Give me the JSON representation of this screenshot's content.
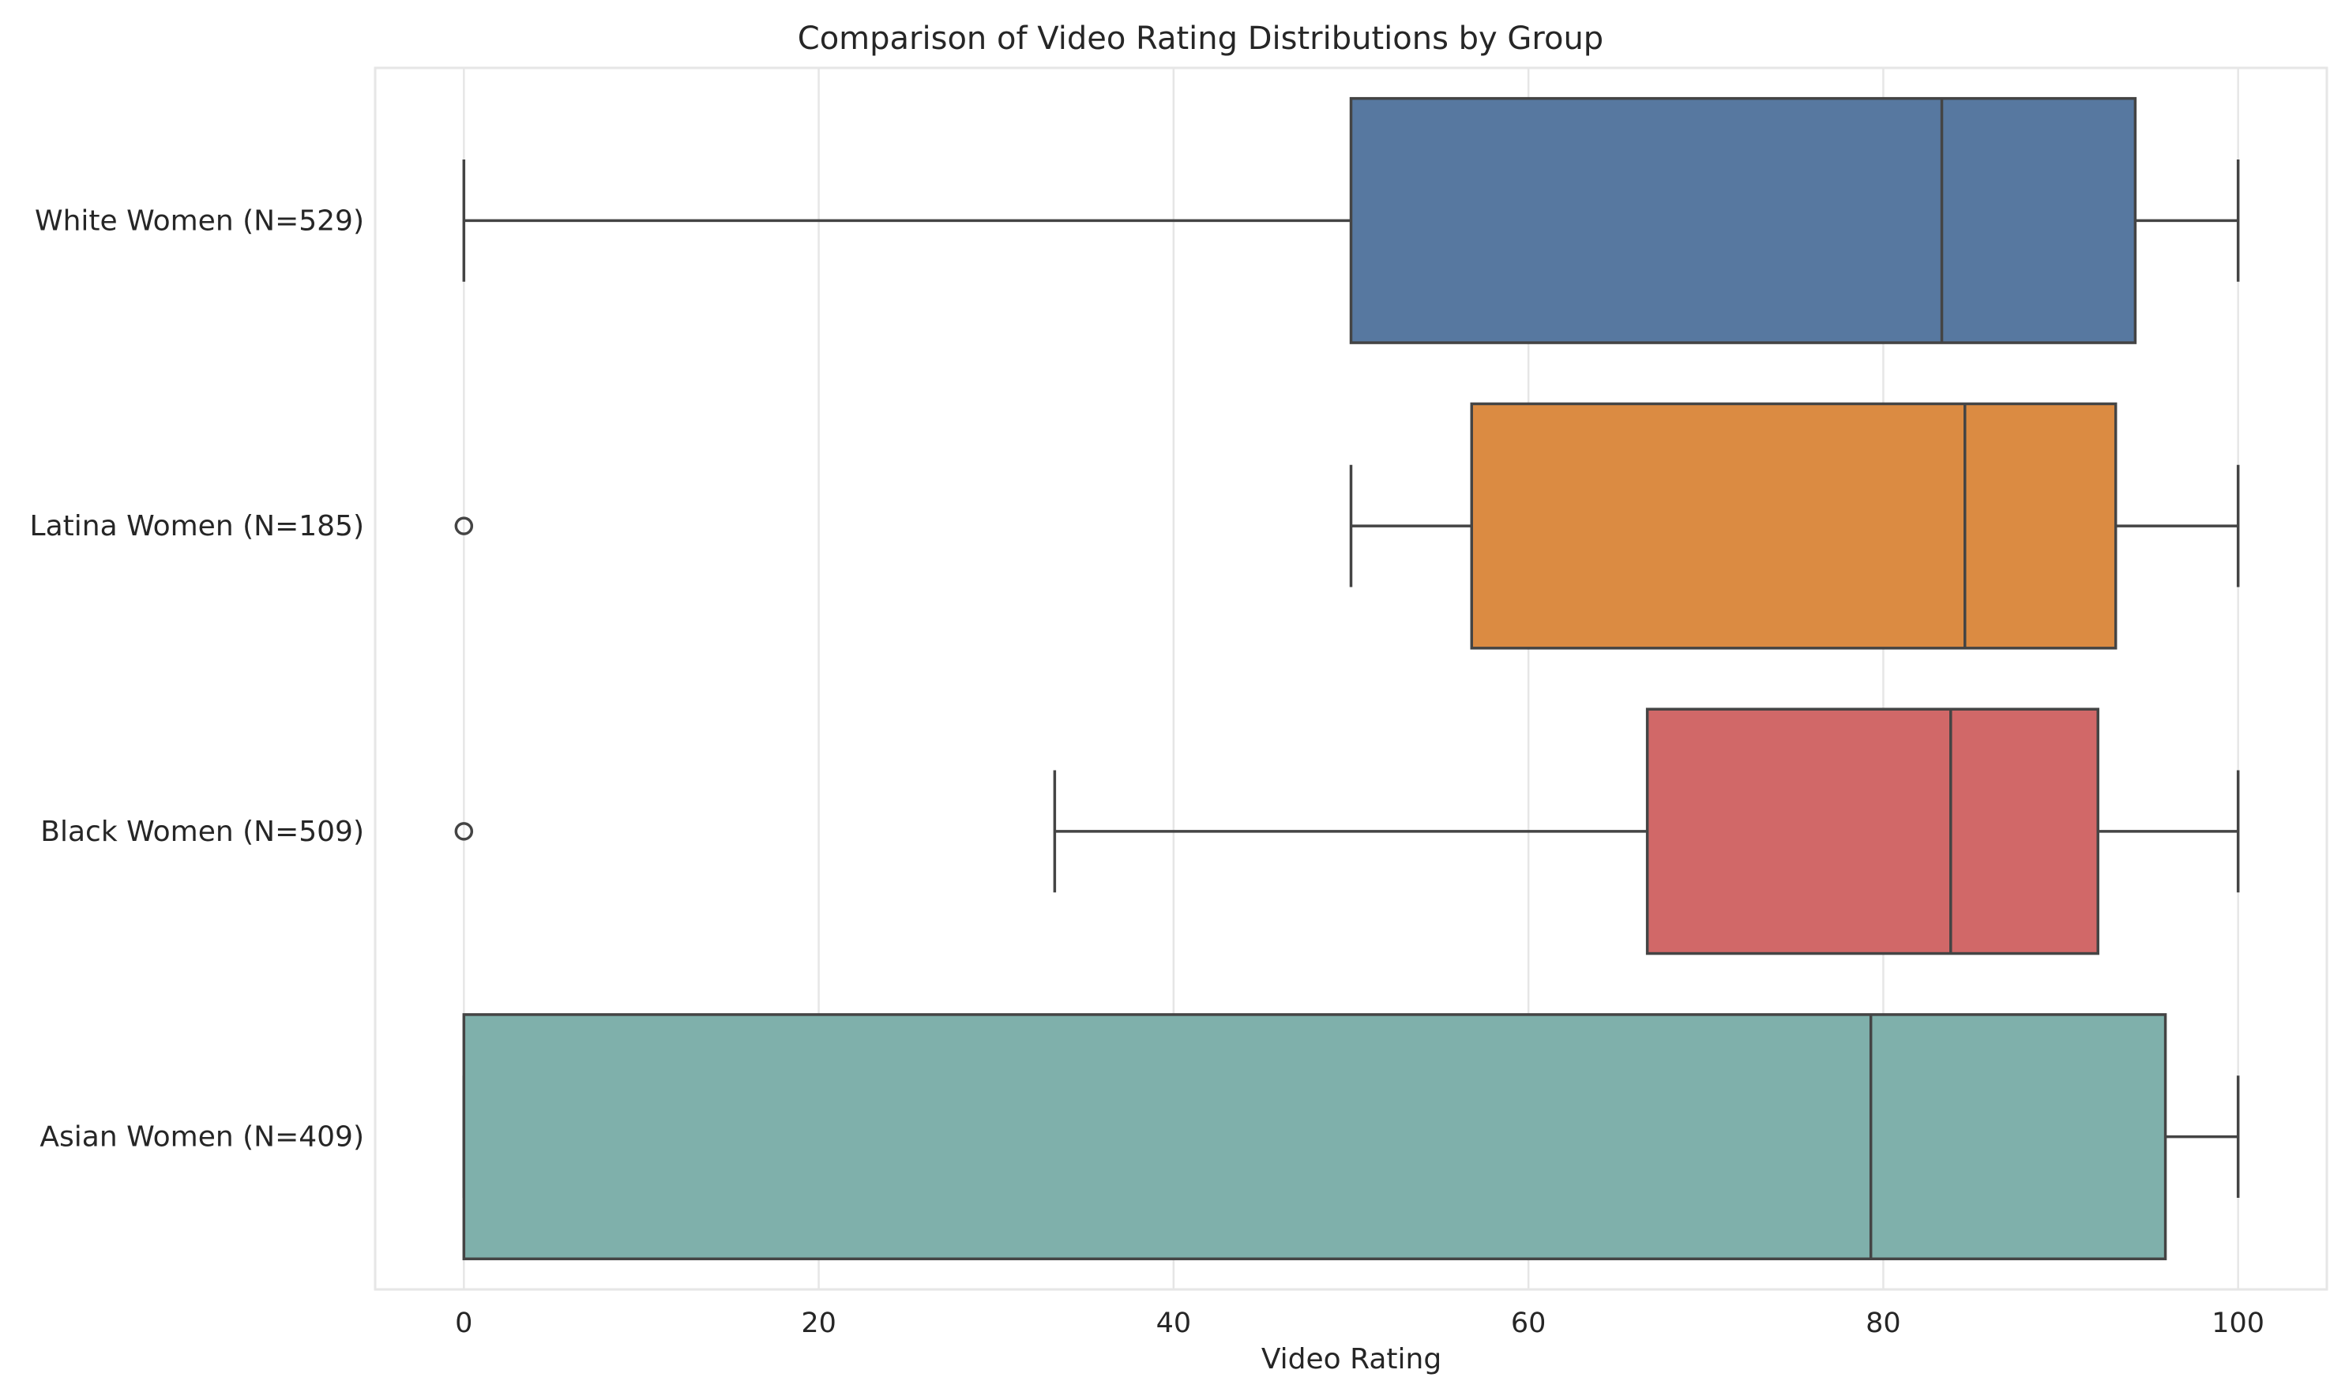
{
  "chart_data": {
    "type": "boxplot",
    "orientation": "horizontal",
    "title": "Comparison of Video Rating Distributions by Group",
    "xlabel": "Video Rating",
    "ylabel": "",
    "xlim": [
      -5,
      105
    ],
    "xticks": [
      0,
      20,
      40,
      60,
      80,
      100
    ],
    "grid": "vertical",
    "legend": "none",
    "categories": [
      "White Women (N=529)",
      "Latina Women (N=185)",
      "Black Women (N=509)",
      "Asian Women (N=409)"
    ],
    "boxes": [
      {
        "whisker_low": 0,
        "q1": 50,
        "median": 83.3,
        "q3": 94.2,
        "whisker_high": 100,
        "outliers": [],
        "color": "#5778a0"
      },
      {
        "whisker_low": 50,
        "q1": 56.8,
        "median": 84.6,
        "q3": 93.1,
        "whisker_high": 100,
        "outliers": [
          0
        ],
        "color": "#db8b42"
      },
      {
        "whisker_low": 33.3,
        "q1": 66.7,
        "median": 83.8,
        "q3": 92.1,
        "whisker_high": 100,
        "outliers": [
          0
        ],
        "color": "#d16868"
      },
      {
        "whisker_low": 0,
        "q1": 0,
        "median": 79.3,
        "q3": 95.9,
        "whisker_high": 100,
        "outliers": [],
        "color": "#7fb0ab"
      }
    ],
    "line_color": "#444444",
    "grid_color": "#e6e6e6",
    "spine_color": "#e6e6e6"
  }
}
